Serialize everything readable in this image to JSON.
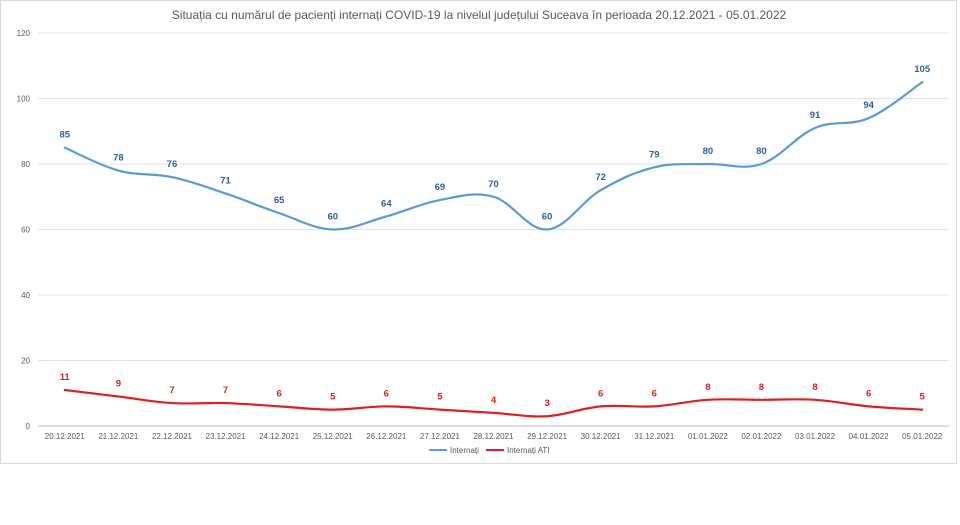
{
  "chart_data": {
    "type": "line",
    "title": "Situația cu numărul de pacienți internați COVID-19 la nivelul județului Suceava în perioada 20.12.2021 - 05.01.2022",
    "xlabel": "",
    "ylabel": "",
    "ylim": [
      0,
      120
    ],
    "yticks": [
      0,
      20,
      40,
      60,
      80,
      100,
      120
    ],
    "grid": true,
    "legend": "bottom",
    "categories": [
      "20.12.2021",
      "21.12.2021",
      "22.12.2021",
      "23.12.2021",
      "24.12.2021",
      "25.12.2021",
      "26.12.2021",
      "27.12.2021",
      "28.12.2021",
      "29.12.2021",
      "30.12.2021",
      "31.12.2021",
      "01.01.2022",
      "02.01.2022",
      "03.01.2022",
      "04.01.2022",
      "05.01.2022"
    ],
    "series": [
      {
        "name": "Internați",
        "color": "#5b9bd5",
        "label_color": "#2e5f9a",
        "values": [
          85,
          78,
          76,
          71,
          65,
          60,
          64,
          69,
          70,
          60,
          72,
          79,
          80,
          80,
          91,
          94,
          105
        ]
      },
      {
        "name": "Internați ATI",
        "color": "#e02020",
        "label_color": "#e02020",
        "values": [
          11,
          9,
          7,
          7,
          6,
          5,
          6,
          5,
          4,
          3,
          6,
          6,
          8,
          8,
          8,
          6,
          5
        ]
      }
    ]
  }
}
